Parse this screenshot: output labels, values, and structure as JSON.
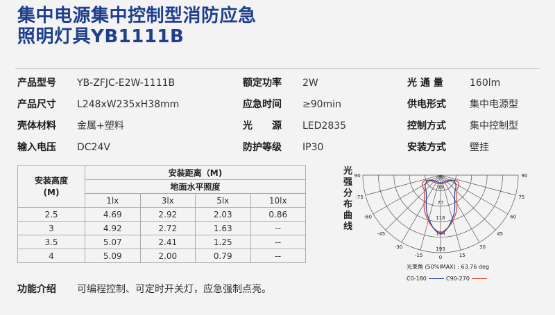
{
  "title_line1": "集中电源集中控制型消防应急",
  "title_line2": "照明灯具YB1111B",
  "specs": [
    {
      "label": "产品型号",
      "value": "YB-ZFJC-E2W-1111B"
    },
    {
      "label": "额定功率",
      "value": "2W"
    },
    {
      "label": "光 通 量",
      "value": "160lm"
    },
    {
      "label": "产品尺寸",
      "value": "L248xW235xH38mm"
    },
    {
      "label": "应急时间",
      "value": "≥90min"
    },
    {
      "label": "供电形式",
      "value": "集中电源型"
    },
    {
      "label": "壳体材料",
      "value": "金属+塑料"
    },
    {
      "label": "光　　源",
      "value": "LED2835"
    },
    {
      "label": "控制方式",
      "value": "集中控制型"
    },
    {
      "label": "输入电压",
      "value": "DC24V"
    },
    {
      "label": "防护等级",
      "value": "IP30"
    },
    {
      "label": "安装方式",
      "value": "壁挂"
    }
  ],
  "table": {
    "height_header": "安装高度\n(M)",
    "distance_header": "安装距离（M)",
    "illum_header": "地面水平照度",
    "columns": [
      "1lx",
      "3lx",
      "5lx",
      "10lx"
    ],
    "rows": [
      {
        "height": "2.5",
        "values": [
          "4.69",
          "2.92",
          "2.03",
          "0.86"
        ]
      },
      {
        "height": "3",
        "values": [
          "4.92",
          "2.72",
          "1.63",
          "--"
        ]
      },
      {
        "height": "3.5",
        "values": [
          "5.07",
          "2.41",
          "1.25",
          "--"
        ]
      },
      {
        "height": "4",
        "values": [
          "5.09",
          "2.00",
          "0.79",
          "--"
        ]
      }
    ]
  },
  "function": {
    "label": "功能介绍",
    "value": "可编程控制、可定时开关灯，应急强制点亮。"
  },
  "curve": {
    "title": "光强分布曲线",
    "angle_labels": [
      "-90",
      "-75",
      "-60",
      "-45",
      "-30",
      "-15",
      "0",
      "15",
      "30",
      "45",
      "60",
      "75",
      "90"
    ],
    "radial_labels": [
      "39",
      "77",
      "116",
      "154",
      "193"
    ],
    "beam_angle": "光束角 (50%IMAX) : 63.76 deg",
    "legend": [
      {
        "name": "C0-180",
        "color": "#1f3f9c"
      },
      {
        "name": "C90-270",
        "color": "#d23a3a"
      }
    ]
  },
  "colors": {
    "title": "#1f3f8c",
    "rule": "#bdbdbd"
  }
}
